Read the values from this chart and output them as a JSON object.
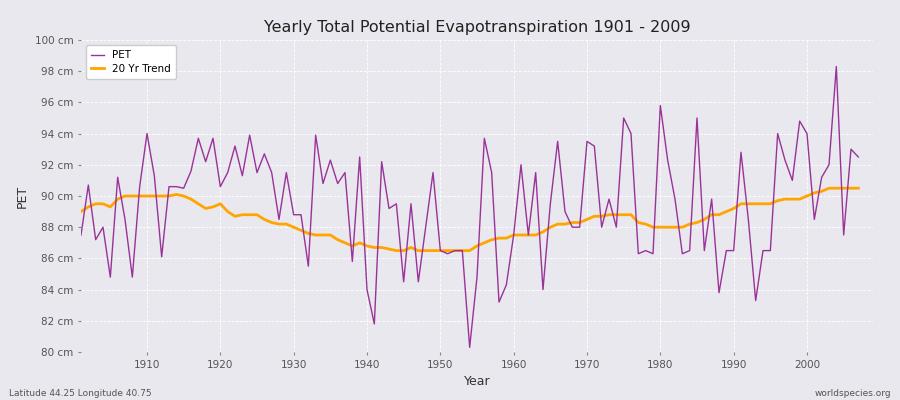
{
  "title": "Yearly Total Potential Evapotranspiration 1901 - 2009",
  "xlabel": "Year",
  "ylabel": "PET",
  "subtitle_left": "Latitude 44.25 Longitude 40.75",
  "subtitle_right": "worldspecies.org",
  "ylim": [
    80,
    100
  ],
  "ytick_labels": [
    "80 cm",
    "82 cm",
    "84 cm",
    "86 cm",
    "88 cm",
    "90 cm",
    "92 cm",
    "94 cm",
    "96 cm",
    "98 cm",
    "100 cm"
  ],
  "ytick_values": [
    80,
    82,
    84,
    86,
    88,
    90,
    92,
    94,
    96,
    98,
    100
  ],
  "pet_color": "#993399",
  "trend_color": "#FFA500",
  "background_color": "#E8E8EE",
  "pet_data": {
    "1901": 87.5,
    "1902": 90.7,
    "1903": 87.2,
    "1904": 88.0,
    "1905": 84.8,
    "1906": 91.2,
    "1907": 88.5,
    "1908": 84.8,
    "1909": 90.6,
    "1910": 94.0,
    "1911": 91.3,
    "1912": 86.1,
    "1913": 90.6,
    "1914": 90.6,
    "1915": 90.5,
    "1916": 91.6,
    "1917": 93.7,
    "1918": 92.2,
    "1919": 93.7,
    "1920": 90.6,
    "1921": 91.5,
    "1922": 93.2,
    "1923": 91.3,
    "1924": 93.9,
    "1925": 91.5,
    "1926": 92.7,
    "1927": 91.5,
    "1928": 88.5,
    "1929": 91.5,
    "1930": 88.8,
    "1931": 88.8,
    "1932": 85.5,
    "1933": 93.9,
    "1934": 90.8,
    "1935": 92.3,
    "1936": 90.8,
    "1937": 91.5,
    "1938": 85.8,
    "1939": 92.5,
    "1940": 84.0,
    "1941": 81.8,
    "1942": 92.2,
    "1943": 89.2,
    "1944": 89.5,
    "1945": 84.5,
    "1946": 89.5,
    "1947": 84.5,
    "1948": 88.0,
    "1949": 91.5,
    "1950": 86.5,
    "1951": 86.3,
    "1952": 86.5,
    "1953": 86.5,
    "1954": 80.3,
    "1955": 84.8,
    "1956": 93.7,
    "1957": 91.5,
    "1958": 83.2,
    "1959": 84.3,
    "1960": 87.5,
    "1961": 92.0,
    "1962": 87.5,
    "1963": 91.5,
    "1964": 84.0,
    "1965": 89.5,
    "1966": 93.5,
    "1967": 89.0,
    "1968": 88.0,
    "1969": 88.0,
    "1970": 93.5,
    "1971": 93.2,
    "1972": 88.0,
    "1973": 89.8,
    "1974": 88.0,
    "1975": 95.0,
    "1976": 94.0,
    "1977": 86.3,
    "1978": 86.5,
    "1979": 86.3,
    "1980": 95.8,
    "1981": 92.3,
    "1982": 89.8,
    "1983": 86.3,
    "1984": 86.5,
    "1985": 95.0,
    "1986": 86.5,
    "1987": 89.8,
    "1988": 83.8,
    "1989": 86.5,
    "1990": 86.5,
    "1991": 92.8,
    "1992": 88.5,
    "1993": 83.3,
    "1994": 86.5,
    "1995": 86.5,
    "1996": 94.0,
    "1997": 92.3,
    "1998": 91.0,
    "1999": 94.8,
    "2000": 94.0,
    "2001": 88.5,
    "2002": 91.2,
    "2003": 92.0,
    "2004": 98.3,
    "2005": 87.5,
    "2006": 93.0,
    "2007": 92.5
  },
  "trend_data": {
    "1901": 89.0,
    "1902": 89.3,
    "1903": 89.5,
    "1904": 89.5,
    "1905": 89.3,
    "1906": 89.8,
    "1907": 90.0,
    "1908": 90.0,
    "1909": 90.0,
    "1910": 90.0,
    "1911": 90.0,
    "1912": 90.0,
    "1913": 90.0,
    "1914": 90.1,
    "1915": 90.0,
    "1916": 89.8,
    "1917": 89.5,
    "1918": 89.2,
    "1919": 89.3,
    "1920": 89.5,
    "1921": 89.0,
    "1922": 88.7,
    "1923": 88.8,
    "1924": 88.8,
    "1925": 88.8,
    "1926": 88.5,
    "1927": 88.3,
    "1928": 88.2,
    "1929": 88.2,
    "1930": 88.0,
    "1931": 87.8,
    "1932": 87.6,
    "1933": 87.5,
    "1934": 87.5,
    "1935": 87.5,
    "1936": 87.2,
    "1937": 87.0,
    "1938": 86.8,
    "1939": 87.0,
    "1940": 86.8,
    "1941": 86.7,
    "1942": 86.7,
    "1943": 86.6,
    "1944": 86.5,
    "1945": 86.5,
    "1946": 86.7,
    "1947": 86.5,
    "1948": 86.5,
    "1949": 86.5,
    "1950": 86.5,
    "1951": 86.5,
    "1952": 86.5,
    "1953": 86.5,
    "1954": 86.5,
    "1955": 86.8,
    "1956": 87.0,
    "1957": 87.2,
    "1958": 87.3,
    "1959": 87.3,
    "1960": 87.5,
    "1961": 87.5,
    "1962": 87.5,
    "1963": 87.5,
    "1964": 87.7,
    "1965": 88.0,
    "1966": 88.2,
    "1967": 88.2,
    "1968": 88.3,
    "1969": 88.3,
    "1970": 88.5,
    "1971": 88.7,
    "1972": 88.7,
    "1973": 88.8,
    "1974": 88.8,
    "1975": 88.8,
    "1976": 88.8,
    "1977": 88.3,
    "1978": 88.2,
    "1979": 88.0,
    "1980": 88.0,
    "1981": 88.0,
    "1982": 88.0,
    "1983": 88.0,
    "1984": 88.2,
    "1985": 88.3,
    "1986": 88.5,
    "1987": 88.8,
    "1988": 88.8,
    "1989": 89.0,
    "1990": 89.2,
    "1991": 89.5,
    "1992": 89.5,
    "1993": 89.5,
    "1994": 89.5,
    "1995": 89.5,
    "1996": 89.7,
    "1997": 89.8,
    "1998": 89.8,
    "1999": 89.8,
    "2000": 90.0,
    "2001": 90.2,
    "2002": 90.3,
    "2003": 90.5,
    "2004": 90.5,
    "2005": 90.5,
    "2006": 90.5,
    "2007": 90.5
  }
}
